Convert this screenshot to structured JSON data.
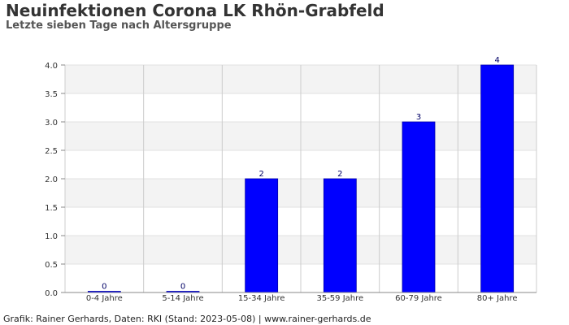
{
  "title": "Neuinfektionen Corona LK Rhön-Grabfeld",
  "subtitle": "Letzte sieben Tage nach Altersgruppe",
  "footer": "Grafik: Rainer Gerhards, Daten: RKI (Stand: 2023-05-08) | www.rainer-gerhards.de",
  "chart_data": {
    "type": "bar",
    "title": "Neuinfektionen Corona LK Rhön-Grabfeld",
    "subtitle": "Letzte sieben Tage nach Altersgruppe",
    "xlabel": "",
    "ylabel": "",
    "categories": [
      "0-4 Jahre",
      "5-14 Jahre",
      "15-34 Jahre",
      "35-59 Jahre",
      "60-79 Jahre",
      "80+ Jahre"
    ],
    "values": [
      0,
      0,
      2,
      2,
      3,
      4
    ],
    "ylim": [
      0,
      4
    ],
    "yticks": [
      0,
      0.5,
      1,
      1.5,
      2,
      2.5,
      3,
      3.5,
      4
    ],
    "ytick_labels": [
      "0.0",
      "0.5",
      "1.0",
      "1.5",
      "2.0",
      "2.5",
      "3.0",
      "3.5",
      "4.0"
    ],
    "grid": true,
    "legend": "none",
    "bar_color": "#0000ff",
    "bar_edge_color": "#0000aa",
    "label_color": "#000066",
    "band_colors": [
      "#ffffff",
      "#f3f3f3"
    ]
  }
}
